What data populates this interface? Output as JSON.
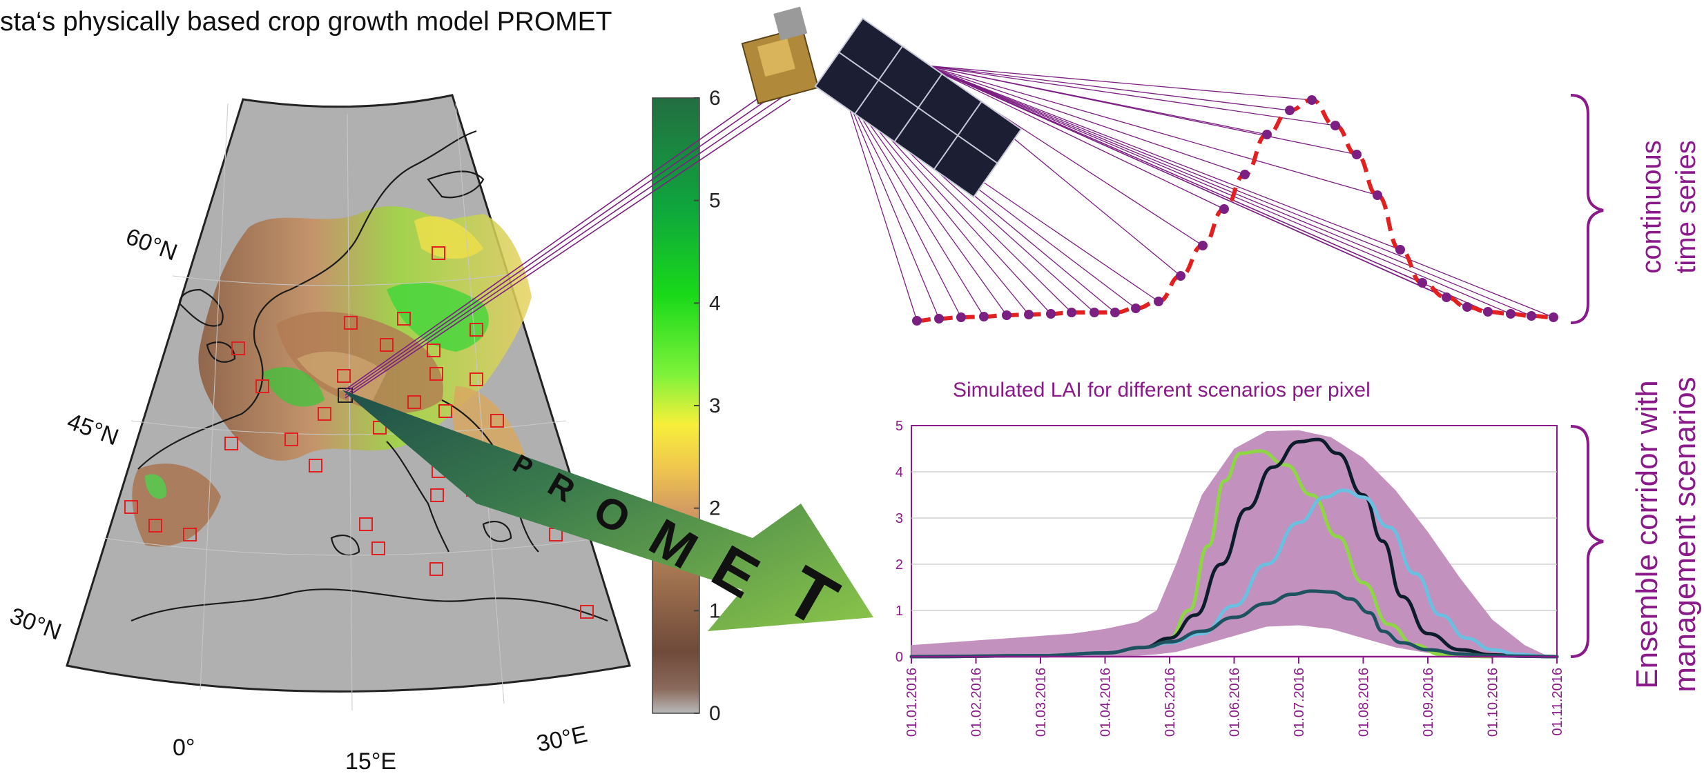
{
  "header": {
    "title": "sta‘s physically based crop growth model PROMET"
  },
  "map": {
    "lat_labels": [
      "60°N",
      "45°N",
      "30°N"
    ],
    "lon_labels": [
      "0°",
      "15°E",
      "30°E"
    ],
    "land_color": "#b0b0b0",
    "marker_color": "#e02020",
    "marker_count": 30
  },
  "colorbar": {
    "ticks": [
      "6",
      "5",
      "4",
      "3",
      "2",
      "1",
      "0"
    ],
    "stops": [
      "#b9b9b9",
      "#6f4a3a",
      "#a0724f",
      "#d39b62",
      "#f0c74e",
      "#f7ef3a",
      "#7ef23a",
      "#19d919",
      "#0fa63d",
      "#236e42"
    ]
  },
  "arrow": {
    "label": "PROMET",
    "color": "#7fc041",
    "dark": "#1f4f4a"
  },
  "satellite": {
    "line_color": "#7b1f82"
  },
  "time_series": {
    "curve_color": "#e32020",
    "dot_color": "#7b1f82",
    "label_line1": "continuous",
    "label_line2": "time series"
  },
  "ensemble": {
    "title": "Simulated LAI for different scenarios per pixel",
    "label_line1": "Ensemble corridor with",
    "label_line2": "management scenarios",
    "accent": "#8a1a8a"
  },
  "chart_data": {
    "type": "area",
    "title": "Simulated LAI for different scenarios per pixel",
    "xlabel": "",
    "ylabel": "",
    "ylim": [
      0,
      5
    ],
    "yticks": [
      0,
      1,
      2,
      3,
      4,
      5
    ],
    "xtick_labels": [
      "01.01.2016",
      "01.02.2016",
      "01.03.2016",
      "01.04.2016",
      "01.05.2016",
      "01.06.2016",
      "01.07.2016",
      "01.08.2016",
      "01.09.2016",
      "01.10.2016",
      "01.11.2016"
    ],
    "xticks_month": [
      0,
      1,
      2,
      3,
      4,
      5,
      6,
      7,
      8,
      9,
      10
    ],
    "grid": true,
    "band": {
      "color": "#c391be",
      "x": [
        0,
        0.5,
        1,
        1.5,
        2,
        2.5,
        3,
        3.5,
        3.8,
        4.1,
        4.5,
        5,
        5.5,
        6,
        6.5,
        7,
        7.5,
        8,
        8.5,
        9,
        9.5,
        9.8,
        10
      ],
      "upper": [
        0.25,
        0.3,
        0.35,
        0.4,
        0.45,
        0.5,
        0.6,
        0.75,
        1.0,
        2.0,
        3.5,
        4.5,
        4.88,
        4.9,
        4.75,
        4.3,
        3.6,
        2.7,
        1.7,
        0.8,
        0.25,
        0.05,
        0
      ],
      "lower": [
        0,
        0,
        0,
        0,
        0,
        0,
        0,
        0.02,
        0.05,
        0.1,
        0.25,
        0.45,
        0.65,
        0.68,
        0.6,
        0.4,
        0.2,
        0.08,
        0.02,
        0,
        0,
        0,
        0
      ]
    },
    "series": [
      {
        "color": "#8fd646",
        "x": [
          0,
          2,
          3,
          3.6,
          4.0,
          4.3,
          4.6,
          4.85,
          5.1,
          5.4,
          5.8,
          6.2,
          6.6,
          7.0,
          7.4,
          7.8,
          8.2,
          8.6,
          9.0
        ],
        "values": [
          0,
          0.02,
          0.08,
          0.2,
          0.4,
          1.0,
          2.4,
          3.8,
          4.4,
          4.45,
          4.15,
          3.5,
          2.6,
          1.6,
          0.7,
          0.25,
          0.05,
          0.01,
          0
        ]
      },
      {
        "color": "#0d1c2b",
        "x": [
          0,
          2,
          3,
          3.6,
          4.0,
          4.4,
          4.8,
          5.2,
          5.6,
          6.0,
          6.3,
          6.6,
          7.0,
          7.3,
          7.6,
          8.0,
          8.5,
          9.0,
          9.5,
          10
        ],
        "values": [
          0,
          0.02,
          0.08,
          0.2,
          0.4,
          0.9,
          2.0,
          3.2,
          4.1,
          4.65,
          4.7,
          4.4,
          3.5,
          2.5,
          1.3,
          0.5,
          0.15,
          0.04,
          0.01,
          0
        ]
      },
      {
        "color": "#6bbfe0",
        "x": [
          0,
          2,
          3,
          3.6,
          4.0,
          4.5,
          5.0,
          5.5,
          6.0,
          6.4,
          6.7,
          7.0,
          7.4,
          7.8,
          8.2,
          8.6,
          9.0,
          9.4,
          9.8,
          10
        ],
        "values": [
          0,
          0.02,
          0.08,
          0.2,
          0.3,
          0.5,
          1.1,
          2.0,
          2.9,
          3.45,
          3.6,
          3.45,
          2.8,
          1.8,
          0.9,
          0.4,
          0.15,
          0.05,
          0.01,
          0
        ]
      },
      {
        "color": "#1e5260",
        "x": [
          0,
          2,
          3,
          3.6,
          4.0,
          4.5,
          5.0,
          5.5,
          5.9,
          6.2,
          6.5,
          6.8,
          7.1,
          7.3,
          7.6,
          8.0,
          8.5,
          9.0,
          9.5,
          10
        ],
        "values": [
          0,
          0.02,
          0.08,
          0.2,
          0.32,
          0.55,
          0.85,
          1.15,
          1.35,
          1.42,
          1.4,
          1.25,
          0.95,
          0.55,
          0.3,
          0.15,
          0.06,
          0.02,
          0.01,
          0
        ]
      }
    ]
  }
}
